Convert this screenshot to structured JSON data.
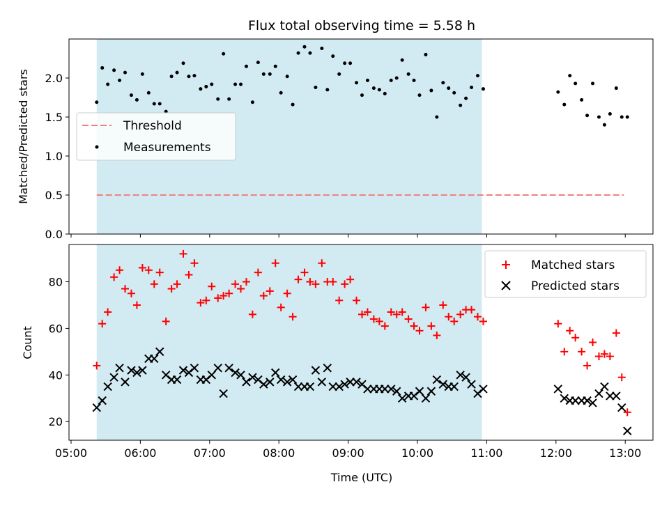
{
  "chart_data": [
    {
      "type": "scatter",
      "title": "Flux total observing time = 5.58 h",
      "xlabel": "",
      "ylabel": "Matched/Predicted stars",
      "xlim_hours": [
        4.97,
        13.4
      ],
      "ylim": [
        0.0,
        2.5
      ],
      "yticks": [
        0.0,
        0.5,
        1.0,
        1.5,
        2.0
      ],
      "ytick_labels": [
        "0.0",
        "0.5",
        "1.0",
        "1.5",
        "2.0"
      ],
      "shaded_span_hours": [
        5.37,
        10.93
      ],
      "legend_position": "center-left",
      "legend": {
        "threshold": "Threshold",
        "measurements": "Measurements"
      },
      "threshold": {
        "value": 0.5,
        "x_range_hours": [
          5.37,
          12.98
        ],
        "color": "#f08080"
      },
      "series": [
        {
          "name": "Measurements",
          "color": "#000000",
          "x": [
            5.37,
            5.45,
            5.53,
            5.62,
            5.7,
            5.78,
            5.87,
            5.95,
            6.03,
            6.12,
            6.2,
            6.28,
            6.37,
            6.45,
            6.53,
            6.62,
            6.7,
            6.78,
            6.87,
            6.95,
            7.03,
            7.12,
            7.2,
            7.28,
            7.37,
            7.45,
            7.53,
            7.62,
            7.7,
            7.78,
            7.87,
            7.95,
            8.03,
            8.12,
            8.2,
            8.28,
            8.37,
            8.45,
            8.53,
            8.62,
            8.7,
            8.78,
            8.87,
            8.95,
            9.03,
            9.12,
            9.2,
            9.28,
            9.37,
            9.45,
            9.53,
            9.62,
            9.7,
            9.78,
            9.87,
            9.95,
            10.03,
            10.12,
            10.2,
            10.28,
            10.37,
            10.45,
            10.53,
            10.62,
            10.7,
            10.78,
            10.87,
            10.95,
            12.03,
            12.12,
            12.2,
            12.28,
            12.37,
            12.45,
            12.53,
            12.62,
            12.7,
            12.78,
            12.87,
            12.95,
            13.03
          ],
          "y": [
            1.69,
            2.13,
            1.92,
            2.1,
            1.97,
            2.07,
            1.78,
            1.72,
            2.05,
            1.81,
            1.67,
            1.67,
            1.57,
            2.02,
            2.07,
            2.19,
            2.02,
            2.03,
            1.86,
            1.89,
            1.92,
            1.73,
            2.31,
            1.73,
            1.92,
            1.92,
            2.15,
            1.69,
            2.2,
            2.05,
            2.05,
            2.15,
            1.81,
            2.02,
            1.66,
            2.32,
            2.4,
            2.32,
            1.88,
            2.38,
            1.85,
            2.28,
            2.05,
            2.19,
            2.19,
            1.94,
            1.78,
            1.97,
            1.87,
            1.85,
            1.8,
            1.97,
            2.0,
            2.23,
            2.05,
            1.97,
            1.78,
            2.3,
            1.84,
            1.5,
            1.94,
            1.87,
            1.81,
            1.65,
            1.74,
            1.88,
            2.03,
            1.86,
            1.82,
            1.66,
            2.03,
            1.93,
            1.72,
            1.52,
            1.93,
            1.5,
            1.4,
            1.54,
            1.87,
            1.5,
            1.5
          ]
        }
      ]
    },
    {
      "type": "scatter",
      "title": "",
      "xlabel": "Time (UTC)",
      "ylabel": "Count",
      "xlim_hours": [
        4.97,
        13.4
      ],
      "ylim": [
        12,
        96
      ],
      "yticks": [
        20,
        40,
        60,
        80
      ],
      "ytick_labels": [
        "20",
        "40",
        "60",
        "80"
      ],
      "xticks_hours": [
        5,
        6,
        7,
        8,
        9,
        10,
        11,
        12,
        13
      ],
      "xtick_labels": [
        "05:00",
        "06:00",
        "07:00",
        "08:00",
        "09:00",
        "10:00",
        "11:00",
        "12:00",
        "13:00"
      ],
      "shaded_span_hours": [
        5.37,
        10.93
      ],
      "legend_position": "top-right",
      "legend": {
        "matched": "Matched stars",
        "predicted": "Predicted stars"
      },
      "series": [
        {
          "name": "Matched stars",
          "color": "#ff0000",
          "marker": "plus",
          "x": [
            5.37,
            5.45,
            5.53,
            5.62,
            5.7,
            5.78,
            5.87,
            5.95,
            6.03,
            6.12,
            6.2,
            6.28,
            6.37,
            6.45,
            6.53,
            6.62,
            6.7,
            6.78,
            6.87,
            6.95,
            7.03,
            7.12,
            7.2,
            7.28,
            7.37,
            7.45,
            7.53,
            7.62,
            7.7,
            7.78,
            7.87,
            7.95,
            8.03,
            8.12,
            8.2,
            8.28,
            8.37,
            8.45,
            8.53,
            8.62,
            8.7,
            8.78,
            8.87,
            8.95,
            9.03,
            9.12,
            9.2,
            9.28,
            9.37,
            9.45,
            9.53,
            9.62,
            9.7,
            9.78,
            9.87,
            9.95,
            10.03,
            10.12,
            10.2,
            10.28,
            10.37,
            10.45,
            10.53,
            10.62,
            10.7,
            10.78,
            10.87,
            10.95,
            12.03,
            12.12,
            12.2,
            12.28,
            12.37,
            12.45,
            12.53,
            12.62,
            12.7,
            12.78,
            12.87,
            12.95,
            13.03
          ],
          "y": [
            44,
            62,
            67,
            82,
            85,
            77,
            75,
            70,
            86,
            85,
            79,
            84,
            63,
            77,
            79,
            92,
            83,
            88,
            71,
            72,
            78,
            73,
            74,
            75,
            79,
            77,
            80,
            66,
            84,
            74,
            76,
            88,
            69,
            75,
            65,
            81,
            84,
            80,
            79,
            88,
            80,
            80,
            72,
            79,
            81,
            72,
            66,
            67,
            64,
            63,
            61,
            67,
            66,
            67,
            64,
            61,
            59,
            69,
            61,
            57,
            70,
            65,
            63,
            66,
            68,
            68,
            65,
            63,
            62,
            50,
            59,
            56,
            50,
            44,
            54,
            48,
            49,
            48,
            58,
            39,
            24
          ]
        },
        {
          "name": "Predicted stars",
          "color": "#000000",
          "marker": "x",
          "x": [
            5.37,
            5.45,
            5.53,
            5.62,
            5.7,
            5.78,
            5.87,
            5.95,
            6.03,
            6.12,
            6.2,
            6.28,
            6.37,
            6.45,
            6.53,
            6.62,
            6.7,
            6.78,
            6.87,
            6.95,
            7.03,
            7.12,
            7.2,
            7.28,
            7.37,
            7.45,
            7.53,
            7.62,
            7.7,
            7.78,
            7.87,
            7.95,
            8.03,
            8.12,
            8.2,
            8.28,
            8.37,
            8.45,
            8.53,
            8.62,
            8.7,
            8.78,
            8.87,
            8.95,
            9.03,
            9.12,
            9.2,
            9.28,
            9.37,
            9.45,
            9.53,
            9.62,
            9.7,
            9.78,
            9.87,
            9.95,
            10.03,
            10.12,
            10.2,
            10.28,
            10.37,
            10.45,
            10.53,
            10.62,
            10.7,
            10.78,
            10.87,
            10.95,
            12.03,
            12.12,
            12.2,
            12.28,
            12.37,
            12.45,
            12.53,
            12.62,
            12.7,
            12.78,
            12.87,
            12.95,
            13.03
          ],
          "y": [
            26,
            29,
            35,
            39,
            43,
            37,
            42,
            41,
            42,
            47,
            47,
            50,
            40,
            38,
            38,
            42,
            41,
            43,
            38,
            38,
            40,
            43,
            32,
            43,
            41,
            40,
            37,
            39,
            38,
            36,
            37,
            41,
            38,
            37,
            38,
            35,
            35,
            35,
            42,
            37,
            43,
            35,
            35,
            36,
            37,
            37,
            36,
            34,
            34,
            34,
            34,
            34,
            33,
            30,
            31,
            31,
            33,
            30,
            33,
            38,
            36,
            35,
            35,
            40,
            39,
            36,
            32,
            34,
            34,
            30,
            29,
            29,
            29,
            29,
            28,
            32,
            35,
            31,
            31,
            26,
            16
          ]
        }
      ]
    }
  ]
}
